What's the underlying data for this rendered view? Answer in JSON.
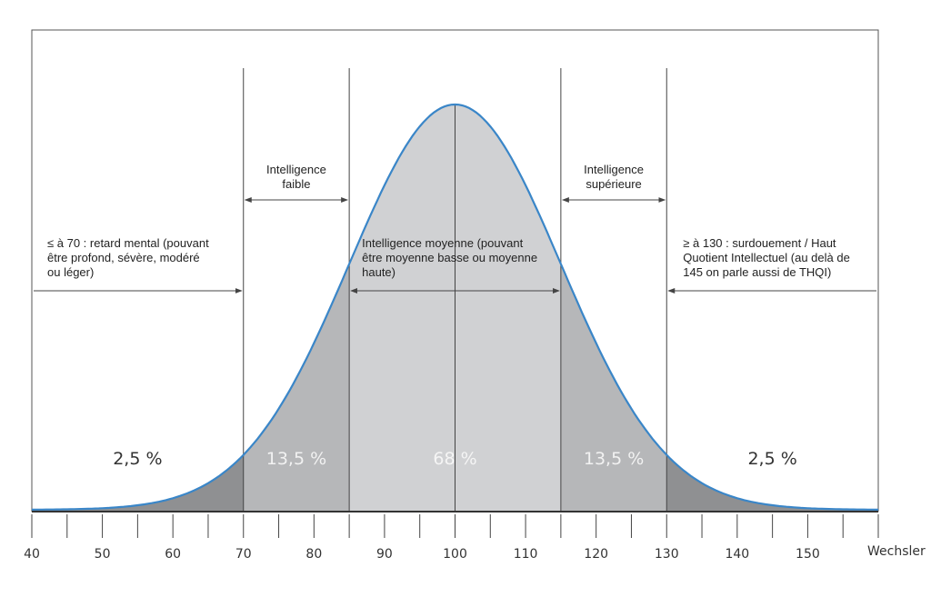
{
  "chart_data": {
    "type": "area",
    "title": "",
    "xlabel": "Wechsler",
    "ylabel": "",
    "xlim": [
      40,
      160
    ],
    "distribution": {
      "kind": "normal",
      "mean": 100,
      "sd": 15
    },
    "x_ticks": [
      40,
      50,
      60,
      70,
      80,
      90,
      100,
      110,
      120,
      130,
      140,
      150
    ],
    "minor_tick_step": 5,
    "boundaries": [
      70,
      85,
      100,
      115,
      130
    ],
    "regions": [
      {
        "from": 40,
        "to": 70,
        "percent_label": "2,5 %",
        "fill": "#8f9092",
        "label_color": "#333333"
      },
      {
        "from": 70,
        "to": 85,
        "percent_label": "13,5 %",
        "fill": "#b6b7b9",
        "label_color": "#f2f2f2"
      },
      {
        "from": 85,
        "to": 115,
        "percent_label": "68 %",
        "fill": "#d0d1d3",
        "label_color": "#f5f5f5"
      },
      {
        "from": 115,
        "to": 130,
        "percent_label": "13,5 %",
        "fill": "#b6b7b9",
        "label_color": "#f2f2f2"
      },
      {
        "from": 130,
        "to": 160,
        "percent_label": "2,5 %",
        "fill": "#8f9092",
        "label_color": "#333333"
      }
    ],
    "curve_color": "#3a86c8",
    "annotations": [
      {
        "lines": [
          "≤ à 70 : retard mental (pouvant",
          "être profond, sévère, modéré",
          "ou léger)"
        ],
        "range": [
          40,
          70
        ],
        "arrow": "right"
      },
      {
        "lines": [
          "Intelligence",
          "faible"
        ],
        "range": [
          70,
          85
        ],
        "arrow": "both"
      },
      {
        "lines": [
          "Intelligence moyenne (pouvant",
          "être moyenne basse ou moyenne",
          "haute)"
        ],
        "range": [
          85,
          115
        ],
        "arrow": "both"
      },
      {
        "lines": [
          "Intelligence",
          "supérieure"
        ],
        "range": [
          115,
          130
        ],
        "arrow": "both"
      },
      {
        "lines": [
          "≥ à 130 : surdouement / Haut",
          "Quotient Intellectuel (au delà de",
          "145 on parle aussi de THQI)"
        ],
        "range": [
          130,
          160
        ],
        "arrow": "left"
      }
    ]
  }
}
